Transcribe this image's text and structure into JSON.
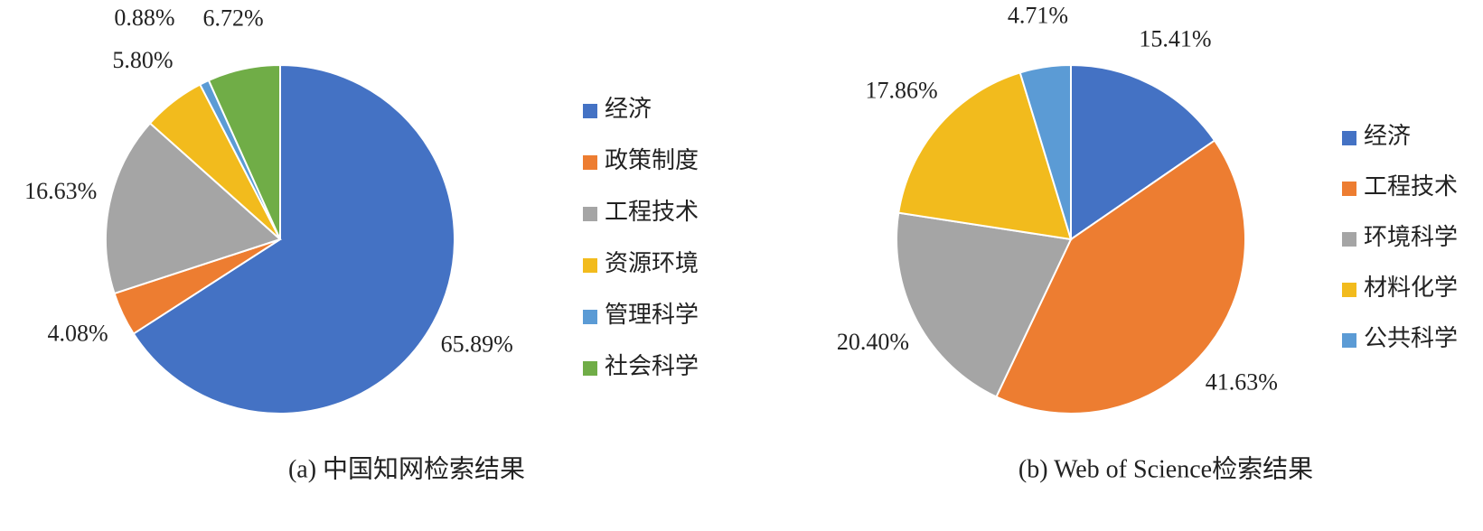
{
  "chart_data": [
    {
      "type": "pie",
      "title": "(a) 中国知网检索结果",
      "categories": [
        "经济",
        "政策制度",
        "工程技术",
        "资源环境",
        "管理科学",
        "社会科学"
      ],
      "values": [
        65.89,
        4.08,
        16.63,
        5.8,
        0.88,
        6.72
      ],
      "value_labels": [
        "65.89%",
        "4.08%",
        "16.63%",
        "5.80%",
        "0.88%",
        "6.72%"
      ],
      "colors": [
        "#4472c4",
        "#ed7d31",
        "#a5a5a5",
        "#f2bb1d",
        "#5b9bd5",
        "#70ad47"
      ],
      "legend": "right"
    },
    {
      "type": "pie",
      "title": "(b) Web of Science检索结果",
      "categories": [
        "经济",
        "工程技术",
        "环境科学",
        "材料化学",
        "公共科学"
      ],
      "values": [
        15.41,
        41.63,
        20.4,
        17.86,
        4.71
      ],
      "value_labels": [
        "15.41%",
        "41.63%",
        "20.40%",
        "17.86%",
        "4.71%"
      ],
      "colors": [
        "#4472c4",
        "#ed7d31",
        "#a5a5a5",
        "#f2bb1d",
        "#5b9bd5"
      ],
      "legend": "right"
    }
  ]
}
